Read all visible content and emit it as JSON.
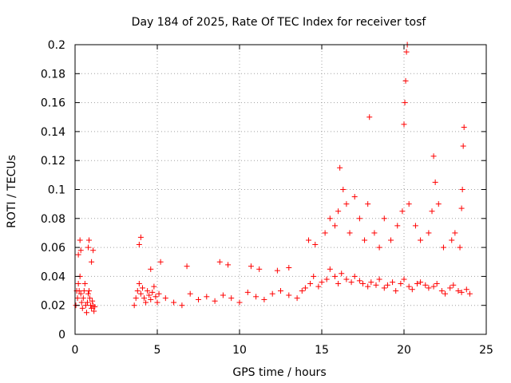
{
  "chart_data": {
    "type": "scatter",
    "title": "Day 184 of 2025, Rate Of TEC Index for receiver tosf",
    "xlabel": "GPS time / hours",
    "ylabel": "ROTI / TECUs",
    "xlim": [
      0,
      25
    ],
    "ylim": [
      0,
      0.2
    ],
    "x_ticks": [
      0,
      5,
      10,
      15,
      20,
      25
    ],
    "y_ticks": [
      0,
      0.02,
      0.04,
      0.06,
      0.08,
      0.1,
      0.12,
      0.14,
      0.16,
      0.18,
      0.2
    ],
    "x_tick_labels": [
      "0",
      "5",
      "10",
      "15",
      "20",
      "25"
    ],
    "y_tick_labels": [
      "0",
      "0.02",
      "0.04",
      "0.06",
      "0.08",
      "0.1",
      "0.12",
      "0.14",
      "0.16",
      "0.18",
      "0.2"
    ],
    "grid": true,
    "marker": "+",
    "color": "#ff0000",
    "series": [
      {
        "name": "ROTI",
        "x": [
          0.05,
          0.1,
          0.15,
          0.2,
          0.25,
          0.3,
          0.35,
          0.4,
          0.45,
          0.5,
          0.55,
          0.6,
          0.65,
          0.7,
          0.75,
          0.8,
          0.85,
          0.9,
          0.95,
          1.0,
          1.05,
          1.1,
          1.15,
          1.2,
          0.2,
          0.3,
          0.35,
          0.8,
          0.85,
          1.0,
          1.1,
          3.6,
          3.7,
          3.8,
          3.9,
          4.0,
          4.1,
          4.2,
          4.3,
          4.4,
          4.5,
          4.6,
          4.7,
          4.8,
          4.9,
          5.0,
          5.1,
          3.9,
          4.0,
          4.6,
          5.2,
          5.5,
          6.0,
          6.5,
          7.0,
          7.5,
          8.0,
          8.5,
          9.0,
          9.5,
          10.0,
          10.5,
          11.0,
          11.5,
          12.0,
          12.5,
          13.0,
          13.5,
          6.8,
          8.8,
          9.3,
          10.7,
          11.2,
          12.3,
          13.0,
          13.8,
          14.0,
          14.3,
          14.5,
          14.8,
          15.0,
          15.3,
          15.5,
          15.8,
          16.0,
          16.2,
          16.5,
          16.8,
          17.0,
          17.3,
          17.5,
          17.8,
          18.0,
          18.3,
          18.5,
          18.8,
          19.0,
          19.3,
          19.5,
          19.8,
          20.0,
          20.3,
          20.5,
          20.8,
          21.0,
          21.3,
          21.5,
          21.8,
          22.0,
          22.3,
          22.5,
          22.8,
          23.0,
          23.3,
          23.5,
          23.8,
          24.0,
          14.2,
          14.6,
          15.2,
          15.5,
          15.8,
          16.0,
          16.1,
          16.3,
          16.5,
          16.7,
          17.0,
          17.3,
          17.6,
          17.8,
          17.9,
          18.2,
          18.5,
          18.8,
          19.2,
          19.6,
          19.9,
          20.0,
          20.05,
          20.1,
          20.15,
          20.2,
          20.3,
          20.7,
          21.0,
          21.5,
          21.7,
          21.8,
          21.9,
          22.1,
          22.4,
          22.9,
          23.1,
          23.4,
          23.5,
          23.55,
          23.6,
          23.65
        ],
        "y": [
          0.02,
          0.03,
          0.025,
          0.035,
          0.03,
          0.04,
          0.028,
          0.022,
          0.018,
          0.025,
          0.03,
          0.035,
          0.02,
          0.015,
          0.022,
          0.028,
          0.03,
          0.025,
          0.02,
          0.018,
          0.023,
          0.02,
          0.016,
          0.019,
          0.055,
          0.065,
          0.058,
          0.06,
          0.065,
          0.05,
          0.058,
          0.02,
          0.025,
          0.03,
          0.035,
          0.028,
          0.032,
          0.025,
          0.022,
          0.03,
          0.027,
          0.024,
          0.029,
          0.033,
          0.026,
          0.022,
          0.028,
          0.062,
          0.067,
          0.045,
          0.05,
          0.025,
          0.022,
          0.02,
          0.028,
          0.024,
          0.026,
          0.023,
          0.027,
          0.025,
          0.022,
          0.029,
          0.026,
          0.024,
          0.028,
          0.03,
          0.027,
          0.025,
          0.047,
          0.05,
          0.048,
          0.047,
          0.045,
          0.044,
          0.046,
          0.03,
          0.032,
          0.035,
          0.04,
          0.033,
          0.036,
          0.038,
          0.045,
          0.04,
          0.035,
          0.042,
          0.038,
          0.036,
          0.04,
          0.037,
          0.035,
          0.033,
          0.036,
          0.034,
          0.038,
          0.032,
          0.034,
          0.036,
          0.03,
          0.035,
          0.038,
          0.033,
          0.031,
          0.035,
          0.036,
          0.034,
          0.032,
          0.033,
          0.035,
          0.03,
          0.028,
          0.032,
          0.034,
          0.03,
          0.029,
          0.031,
          0.028,
          0.065,
          0.062,
          0.07,
          0.08,
          0.075,
          0.085,
          0.115,
          0.1,
          0.09,
          0.07,
          0.095,
          0.08,
          0.065,
          0.09,
          0.15,
          0.07,
          0.06,
          0.08,
          0.065,
          0.075,
          0.085,
          0.145,
          0.16,
          0.175,
          0.195,
          0.2,
          0.09,
          0.075,
          0.065,
          0.07,
          0.085,
          0.123,
          0.105,
          0.09,
          0.06,
          0.065,
          0.07,
          0.06,
          0.087,
          0.1,
          0.13,
          0.143
        ]
      }
    ]
  }
}
